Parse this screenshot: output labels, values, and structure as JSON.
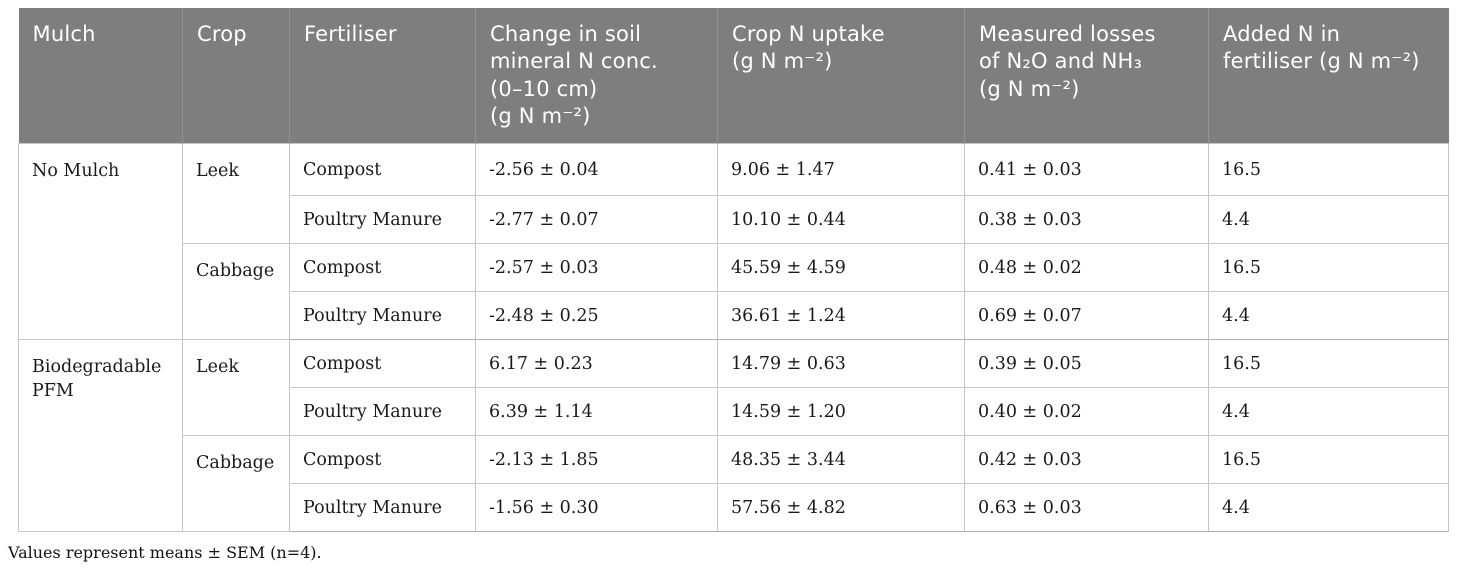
{
  "table": {
    "columns": [
      {
        "label": "Mulch"
      },
      {
        "label": "Crop"
      },
      {
        "label": "Fertiliser"
      },
      {
        "label": "Change in soil\nmineral N conc.\n(0–10 cm)\n(g N m⁻²)"
      },
      {
        "label": "Crop N uptake\n(g N m⁻²)"
      },
      {
        "label": "Measured losses\nof N₂O and NH₃\n(g N m⁻²)"
      },
      {
        "label": "Added N in\nfertiliser (g N m⁻²)"
      }
    ],
    "groups": [
      {
        "mulch": "No Mulch",
        "crops": [
          {
            "crop": "Leek",
            "rows": [
              {
                "fertiliser": "Compost",
                "soil_n_change": "-2.56 ± 0.04",
                "crop_n_uptake": "9.06 ± 1.47",
                "n_losses": "0.41 ± 0.03",
                "added_n": "16.5"
              },
              {
                "fertiliser": "Poultry Manure",
                "soil_n_change": "-2.77 ± 0.07",
                "crop_n_uptake": "10.10 ± 0.44",
                "n_losses": "0.38 ± 0.03",
                "added_n": "4.4"
              }
            ]
          },
          {
            "crop": "Cabbage",
            "rows": [
              {
                "fertiliser": "Compost",
                "soil_n_change": "-2.57 ± 0.03",
                "crop_n_uptake": "45.59 ± 4.59",
                "n_losses": "0.48 ± 0.02",
                "added_n": "16.5"
              },
              {
                "fertiliser": "Poultry Manure",
                "soil_n_change": "-2.48 ± 0.25",
                "crop_n_uptake": "36.61 ± 1.24",
                "n_losses": "0.69 ± 0.07",
                "added_n": "4.4"
              }
            ]
          }
        ]
      },
      {
        "mulch": "Biodegradable PFM",
        "crops": [
          {
            "crop": "Leek",
            "rows": [
              {
                "fertiliser": "Compost",
                "soil_n_change": "6.17 ± 0.23",
                "crop_n_uptake": "14.79 ± 0.63",
                "n_losses": "0.39 ± 0.05",
                "added_n": "16.5"
              },
              {
                "fertiliser": "Poultry Manure",
                "soil_n_change": "6.39 ± 1.14",
                "crop_n_uptake": "14.59 ± 1.20",
                "n_losses": "0.40 ± 0.02",
                "added_n": "4.4"
              }
            ]
          },
          {
            "crop": "Cabbage",
            "rows": [
              {
                "fertiliser": "Compost",
                "soil_n_change": "-2.13 ± 1.85",
                "crop_n_uptake": "48.35 ± 3.44",
                "n_losses": "0.42 ± 0.03",
                "added_n": "16.5"
              },
              {
                "fertiliser": "Poultry Manure",
                "soil_n_change": "-1.56 ± 0.30",
                "crop_n_uptake": "57.56 ± 4.82",
                "n_losses": "0.63 ± 0.03",
                "added_n": "4.4"
              }
            ]
          }
        ]
      }
    ],
    "footnote": "Values represent means ± SEM (n=4).",
    "colors": {
      "header_bg": "#7e7e7e",
      "header_text": "#ffffff",
      "body_text": "#1a1a1a",
      "grid_line": "#c6c6c6"
    }
  }
}
